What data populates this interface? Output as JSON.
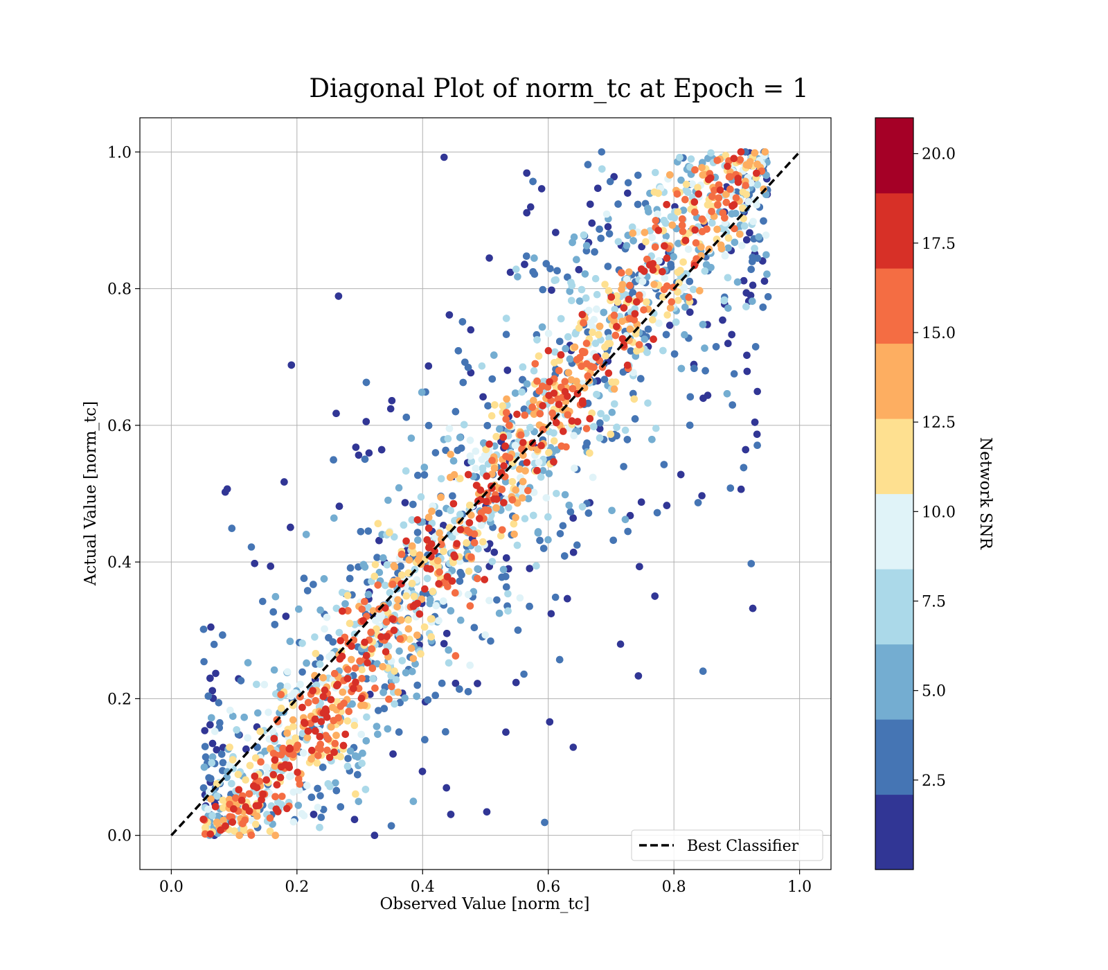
{
  "chart_data": {
    "type": "scatter",
    "title": "Diagonal Plot of norm_tc at Epoch = 1",
    "xlabel": "Observed Value [norm_tc]",
    "ylabel": "Actual Value [norm_tc]",
    "xlim": [
      -0.05,
      1.05
    ],
    "ylim": [
      -0.05,
      1.05
    ],
    "xticks": [
      "0.0",
      "0.2",
      "0.4",
      "0.6",
      "0.8",
      "1.0"
    ],
    "yticks": [
      "0.0",
      "0.2",
      "0.4",
      "0.6",
      "0.8",
      "1.0"
    ],
    "grid": true,
    "reference_line": {
      "label": "Best Classifier",
      "x": [
        0,
        1
      ],
      "y": [
        0,
        1
      ],
      "style": "dashed",
      "color": "#000000"
    },
    "legend": {
      "position": "bottom-right",
      "entries": [
        "Best Classifier"
      ]
    },
    "colorbar": {
      "label": "Network SNR",
      "min": 0,
      "max": 21,
      "ticks": [
        "2.5",
        "5.0",
        "7.5",
        "10.0",
        "12.5",
        "15.0",
        "17.5",
        "20.0"
      ],
      "colors": [
        "#313695",
        "#4575b4",
        "#74add1",
        "#abd9e9",
        "#e0f3f8",
        "#fee090",
        "#fdae61",
        "#f46d43",
        "#d73027",
        "#a50026"
      ]
    },
    "point_distribution": {
      "description": "dense scatter of predictions; high-SNR points lie close to the diagonal, low-SNR points spread toward the vertical bands",
      "approx_points": 3800
    }
  }
}
